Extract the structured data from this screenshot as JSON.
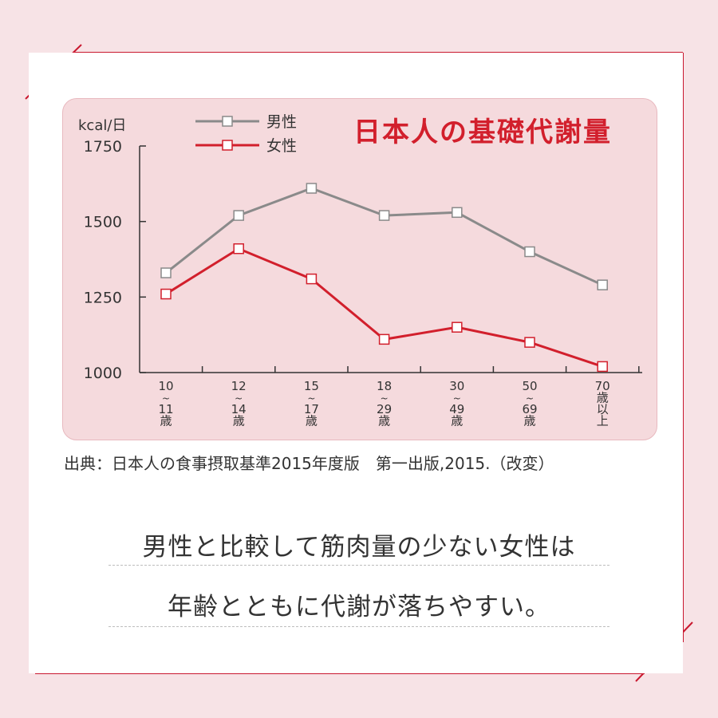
{
  "colors": {
    "background": "#f7e3e6",
    "card": "#ffffff",
    "panel": "#f5dadd",
    "frame_line": "#c9182f",
    "male": "#8a8a8a",
    "female": "#d21f2c",
    "title": "#d21f2c"
  },
  "chart_data": {
    "type": "line",
    "title": "日本人の基礎代謝量",
    "ylabel": "kcal/日",
    "ylim": [
      1000,
      1750
    ],
    "yticks": [
      "1000",
      "1250",
      "1500",
      "1750"
    ],
    "categories": [
      [
        "10",
        "~",
        "11",
        "歳"
      ],
      [
        "12",
        "~",
        "14",
        "歳"
      ],
      [
        "15",
        "~",
        "17",
        "歳"
      ],
      [
        "18",
        "~",
        "29",
        "歳"
      ],
      [
        "30",
        "~",
        "49",
        "歳"
      ],
      [
        "50",
        "~",
        "69",
        "歳"
      ],
      [
        "70",
        "歳",
        "以",
        "上"
      ]
    ],
    "legend_position": "top-left",
    "grid": false,
    "series": [
      {
        "name": "男性",
        "color": "#8a8a8a",
        "values": [
          1330,
          1520,
          1610,
          1520,
          1530,
          1400,
          1290
        ]
      },
      {
        "name": "女性",
        "color": "#d21f2c",
        "values": [
          1260,
          1410,
          1310,
          1110,
          1150,
          1100,
          1020
        ]
      }
    ]
  },
  "source": "出典：日本人の食事摂取基準2015年度版　第一出版,2015.（改変）",
  "caption": {
    "line1": "男性と比較して筋肉量の少ない女性は",
    "line2": "年齢とともに代謝が落ちやすい。"
  }
}
